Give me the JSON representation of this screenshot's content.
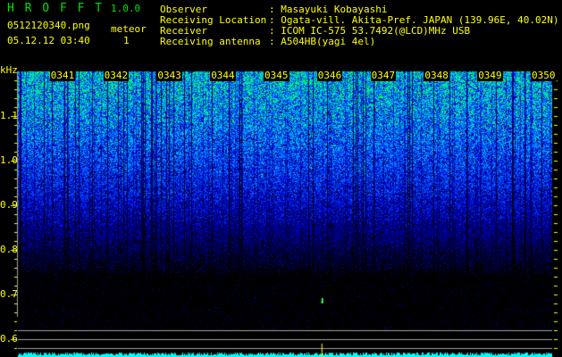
{
  "header": {
    "app_name": "H R O F F T",
    "version": "1.0.0",
    "filename": "0512120340.png",
    "datetime": "05.12.12 03:40",
    "meteor_label": "meteor",
    "meteor_count": "1",
    "info": [
      {
        "label": "Observer",
        "value": ": Masayuki Kobayashi"
      },
      {
        "label": "Receiving Location",
        "value": ": Ogata-vill. Akita-Pref. JAPAN (139.96E, 40.02N)"
      },
      {
        "label": "Receiver",
        "value": ": ICOM IC-575 53.7492(@LCD)MHz USB"
      },
      {
        "label": "Receiving antenna",
        "value": ": A504HB(yagi 4el)"
      }
    ]
  },
  "chart_data": {
    "type": "heatmap",
    "ylabel": "kHz",
    "y_ticks": [
      "1.1",
      "1.0",
      "0.9",
      "0.8",
      "0.7",
      "0.6"
    ],
    "ylim": [
      0.57,
      1.2
    ],
    "x_ticks": [
      "0341",
      "0342",
      "0343",
      "0344",
      "0345",
      "0346",
      "0347",
      "0348",
      "0349",
      "0350"
    ],
    "xlim": [
      "0340",
      "0350"
    ],
    "colormap": [
      "#000000",
      "#0000c0",
      "#0050ff",
      "#00c0ff",
      "#00ff60"
    ],
    "reference_lines_khz": [
      0.62,
      0.6,
      0.58
    ],
    "meteor_echo": {
      "time": "0346",
      "freq_khz": 0.68
    },
    "histogram_color": "#00ffff"
  }
}
